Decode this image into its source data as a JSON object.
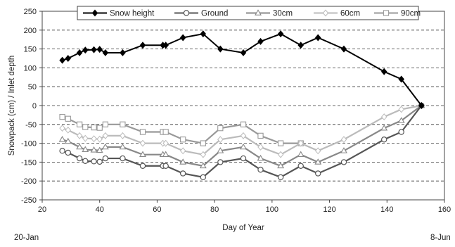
{
  "chart_data": {
    "type": "line",
    "xlabel": "Day of Year",
    "ylabel": "Snowpack (cm) / Inlet depth",
    "xlim": [
      20,
      160
    ],
    "ylim": [
      -250,
      250
    ],
    "xticks": [
      20,
      40,
      60,
      80,
      100,
      120,
      140,
      160
    ],
    "yticks": [
      -250,
      -200,
      -150,
      -100,
      -50,
      0,
      50,
      100,
      150,
      200,
      250
    ],
    "grid": "horizontal dashed",
    "legend_position": "top",
    "annotations": {
      "start_date": "20-Jan",
      "end_date": "8-Jun"
    },
    "series": [
      {
        "name": "Snow height",
        "marker": "diamond-filled",
        "color": "#000000",
        "x": [
          27,
          29,
          33,
          35,
          38,
          40,
          42,
          48,
          55,
          62,
          63,
          69,
          76,
          82,
          90,
          96,
          103,
          110,
          116,
          125,
          139,
          145,
          152
        ],
        "y": [
          120,
          125,
          140,
          147,
          148,
          149,
          140,
          140,
          160,
          160,
          160,
          180,
          190,
          150,
          140,
          170,
          190,
          160,
          180,
          150,
          90,
          70,
          0
        ]
      },
      {
        "name": "Ground",
        "marker": "circle-open",
        "color": "#555555",
        "x": [
          27,
          29,
          33,
          35,
          38,
          40,
          42,
          48,
          55,
          62,
          63,
          69,
          76,
          82,
          90,
          96,
          103,
          110,
          116,
          125,
          139,
          145,
          152
        ],
        "y": [
          -120,
          -125,
          -140,
          -147,
          -148,
          -149,
          -140,
          -140,
          -160,
          -160,
          -160,
          -180,
          -190,
          -150,
          -140,
          -170,
          -190,
          -160,
          -180,
          -150,
          -90,
          -70,
          0
        ]
      },
      {
        "name": "30cm",
        "marker": "triangle-open",
        "color": "#888888",
        "x": [
          27,
          29,
          33,
          35,
          38,
          40,
          42,
          48,
          55,
          62,
          63,
          69,
          76,
          82,
          90,
          96,
          103,
          110,
          116,
          125,
          139,
          145,
          152
        ],
        "y": [
          -90,
          -95,
          -110,
          -117,
          -118,
          -119,
          -110,
          -110,
          -130,
          -130,
          -130,
          -150,
          -160,
          -120,
          -110,
          -140,
          -160,
          -130,
          -150,
          -120,
          -60,
          -40,
          0
        ]
      },
      {
        "name": "60cm",
        "marker": "diamond-open",
        "color": "#bbbbbb",
        "x": [
          27,
          29,
          33,
          35,
          38,
          40,
          42,
          48,
          55,
          62,
          63,
          69,
          76,
          82,
          90,
          96,
          103,
          110,
          116,
          125,
          139,
          145,
          152
        ],
        "y": [
          -60,
          -65,
          -80,
          -87,
          -88,
          -89,
          -80,
          -80,
          -100,
          -100,
          -100,
          -120,
          -130,
          -90,
          -80,
          -110,
          -130,
          -100,
          -120,
          -90,
          -30,
          -10,
          0
        ]
      },
      {
        "name": "90cm",
        "marker": "square-open",
        "color": "#999999",
        "x": [
          27,
          29,
          33,
          35,
          38,
          40,
          42,
          48,
          55,
          62,
          63,
          69,
          76,
          82,
          90,
          96,
          103,
          110
        ],
        "y": [
          -30,
          -35,
          -50,
          -57,
          -58,
          -59,
          -50,
          -50,
          -70,
          -70,
          -70,
          -90,
          -100,
          -60,
          -50,
          -80,
          -100,
          -100
        ]
      }
    ]
  }
}
